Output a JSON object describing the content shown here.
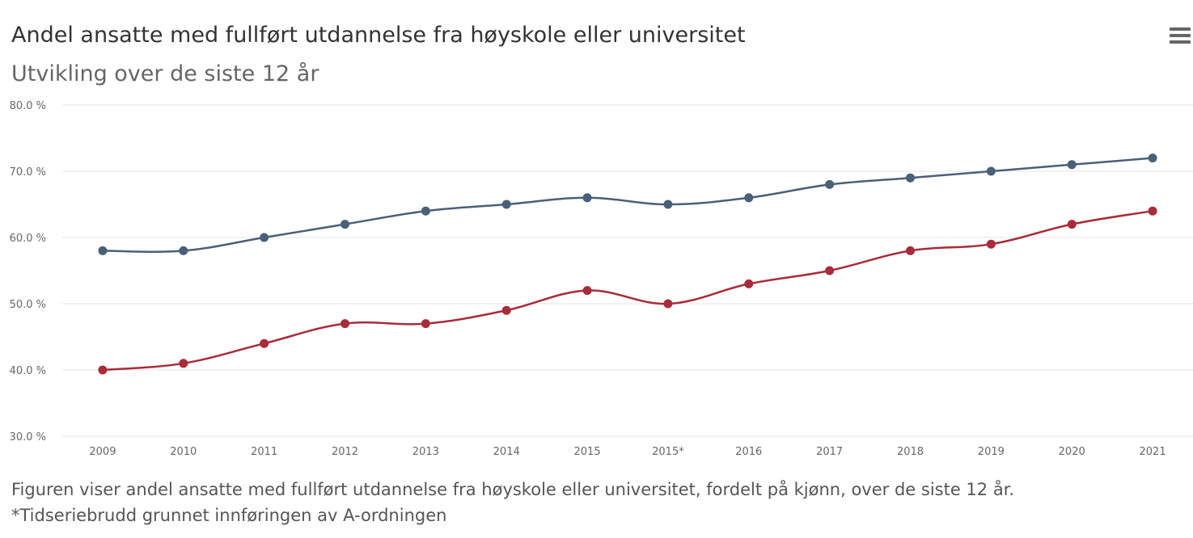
{
  "chart_data": {
    "type": "line",
    "title": "Andel ansatte med fullført utdannelse fra høyskole eller universitet",
    "subtitle": "Utvikling over de siste 12 år",
    "categories": [
      "2009",
      "2010",
      "2011",
      "2012",
      "2013",
      "2014",
      "2015",
      "2015*",
      "2016",
      "2017",
      "2018",
      "2019",
      "2020",
      "2021"
    ],
    "y_ticks": [
      "30.0 %",
      "40.0 %",
      "50.0 %",
      "60.0 %",
      "70.0 %",
      "80.0 %"
    ],
    "ylim": [
      30,
      80
    ],
    "grid": true,
    "series": [
      {
        "color": "#4a5f78",
        "values": [
          58,
          58,
          60,
          62,
          64,
          65,
          66,
          65,
          66,
          68,
          69,
          70,
          71,
          72
        ]
      },
      {
        "color": "#a82c3a",
        "values": [
          40,
          41,
          44,
          47,
          47,
          49,
          52,
          50,
          53,
          55,
          58,
          59,
          62,
          64
        ]
      }
    ]
  },
  "caption": {
    "line1": "Figuren viser andel ansatte med fullført utdannelse fra høyskole eller universitet, fordelt på kjønn, over de siste 12 år.",
    "line2": "*Tidseriebrudd grunnet innføringen av A-ordningen"
  },
  "menu_icon": "hamburger-menu-icon"
}
